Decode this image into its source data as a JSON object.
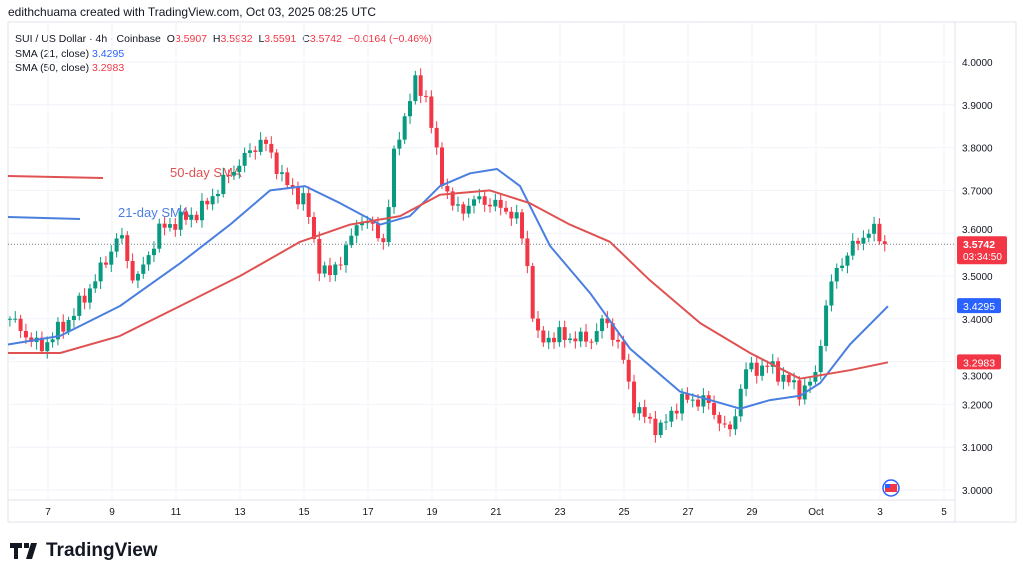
{
  "credit": "edithchuama created with TradingView.com, Oct 03, 2025 08:25 UTC",
  "legend": {
    "symbol": "SUI / US Dollar · 4h · Coinbase",
    "o_label": "O",
    "o": "3.5907",
    "h_label": "H",
    "h": "3.5932",
    "l_label": "L",
    "l": "3.5591",
    "c_label": "C",
    "c": "3.5742",
    "change": "−0.0164 (−0.46%)",
    "sma21_label": "SMA (21, close)",
    "sma21": "3.4295",
    "sma50_label": "SMA (50, close)",
    "sma50": "3.2983"
  },
  "brand": "TradingView",
  "colors": {
    "up": "#089981",
    "down": "#f23645",
    "sma21": "#4a7fe0",
    "sma50": "#e05252"
  },
  "chart_data": {
    "type": "candlestick",
    "title": "SUI / US Dollar · 4h · Coinbase",
    "ylim": [
      2.95,
      4.05
    ],
    "yticks": [
      "4.0000",
      "3.9000",
      "3.8000",
      "3.7000",
      "3.6000",
      "3.5000",
      "3.4000",
      "3.3000",
      "3.2000",
      "3.1000",
      "3.0000"
    ],
    "xtick_labels": [
      {
        "d": 0,
        "label": "7"
      },
      {
        "d": 2,
        "label": "9"
      },
      {
        "d": 4,
        "label": "11"
      },
      {
        "d": 6,
        "label": "13"
      },
      {
        "d": 8,
        "label": "15"
      },
      {
        "d": 10,
        "label": "17"
      },
      {
        "d": 12,
        "label": "19"
      },
      {
        "d": 14,
        "label": "21"
      },
      {
        "d": 16,
        "label": "23"
      },
      {
        "d": 18,
        "label": "25"
      },
      {
        "d": 20,
        "label": "27"
      },
      {
        "d": 22,
        "label": "29"
      },
      {
        "d": 24,
        "label": "Oct"
      },
      {
        "d": 26,
        "label": "3"
      },
      {
        "d": 28,
        "label": "5"
      }
    ],
    "x_unit": "days since Sep 7, 2025",
    "candle_interval_days": 0.1667,
    "close_path": [
      [
        -1.19,
        3.4
      ],
      [
        -0.25,
        3.33
      ],
      [
        0.69,
        3.4
      ],
      [
        1.47,
        3.49
      ],
      [
        2.25,
        3.6
      ],
      [
        2.72,
        3.48
      ],
      [
        3.5,
        3.61
      ],
      [
        4.75,
        3.65
      ],
      [
        5.69,
        3.74
      ],
      [
        6.69,
        3.82
      ],
      [
        7.56,
        3.7
      ],
      [
        8.03,
        3.68
      ],
      [
        8.44,
        3.53
      ],
      [
        8.81,
        3.5
      ],
      [
        9.44,
        3.58
      ],
      [
        9.75,
        3.64
      ],
      [
        10.53,
        3.58
      ],
      [
        10.84,
        3.8
      ],
      [
        11.47,
        3.95
      ],
      [
        11.78,
        3.93
      ],
      [
        12.25,
        3.74
      ],
      [
        12.72,
        3.65
      ],
      [
        13.5,
        3.68
      ],
      [
        14.44,
        3.65
      ],
      [
        14.75,
        3.62
      ],
      [
        15.06,
        3.49
      ],
      [
        15.22,
        3.35
      ],
      [
        16.0,
        3.36
      ],
      [
        16.94,
        3.35
      ],
      [
        17.41,
        3.4
      ],
      [
        17.88,
        3.33
      ],
      [
        18.34,
        3.19
      ],
      [
        19.13,
        3.14
      ],
      [
        19.75,
        3.21
      ],
      [
        20.53,
        3.21
      ],
      [
        21.31,
        3.13
      ],
      [
        21.78,
        3.28
      ],
      [
        22.56,
        3.29
      ],
      [
        23.5,
        3.23
      ],
      [
        23.97,
        3.26
      ],
      [
        24.28,
        3.42
      ],
      [
        24.59,
        3.51
      ],
      [
        25.06,
        3.56
      ],
      [
        25.69,
        3.61
      ],
      [
        26.25,
        3.5742
      ]
    ],
    "series": [
      {
        "name": "SMA (21, close)",
        "last": 3.4295,
        "points": [
          [
            -1.25,
            3.34
          ],
          [
            0.38,
            3.36
          ],
          [
            2.25,
            3.43
          ],
          [
            4.13,
            3.53
          ],
          [
            5.69,
            3.62
          ],
          [
            6.94,
            3.7
          ],
          [
            8.03,
            3.71
          ],
          [
            9.13,
            3.67
          ],
          [
            10.38,
            3.62
          ],
          [
            11.31,
            3.64
          ],
          [
            12.25,
            3.71
          ],
          [
            13.19,
            3.74
          ],
          [
            14.03,
            3.75
          ],
          [
            14.75,
            3.71
          ],
          [
            15.69,
            3.57
          ],
          [
            16.94,
            3.46
          ],
          [
            18.19,
            3.33
          ],
          [
            19.75,
            3.23
          ],
          [
            20.69,
            3.21
          ],
          [
            21.63,
            3.19
          ],
          [
            22.56,
            3.21
          ],
          [
            23.5,
            3.22
          ],
          [
            24.13,
            3.25
          ],
          [
            25.06,
            3.34
          ],
          [
            26.25,
            3.4295
          ]
        ]
      },
      {
        "name": "SMA (50, close)",
        "last": 3.2983,
        "points": [
          [
            -1.25,
            3.32
          ],
          [
            0.38,
            3.32
          ],
          [
            2.25,
            3.36
          ],
          [
            4.13,
            3.43
          ],
          [
            6.0,
            3.5
          ],
          [
            7.88,
            3.58
          ],
          [
            9.44,
            3.62
          ],
          [
            11.0,
            3.64
          ],
          [
            12.25,
            3.69
          ],
          [
            13.81,
            3.7
          ],
          [
            15.06,
            3.67
          ],
          [
            16.31,
            3.62
          ],
          [
            17.56,
            3.58
          ],
          [
            18.81,
            3.49
          ],
          [
            20.38,
            3.39
          ],
          [
            21.94,
            3.32
          ],
          [
            23.5,
            3.26
          ],
          [
            25.06,
            3.28
          ],
          [
            26.25,
            3.2983
          ]
        ]
      }
    ],
    "annotations": [
      {
        "text": "50-day SMA",
        "series": "SMA (50, close)"
      },
      {
        "text": "21-day SMA",
        "series": "SMA (21, close)"
      }
    ],
    "last_price_label": "3.5742",
    "countdown": "03:34:50",
    "sma21_axis_label": "3.4295",
    "sma50_axis_label": "3.2983"
  }
}
